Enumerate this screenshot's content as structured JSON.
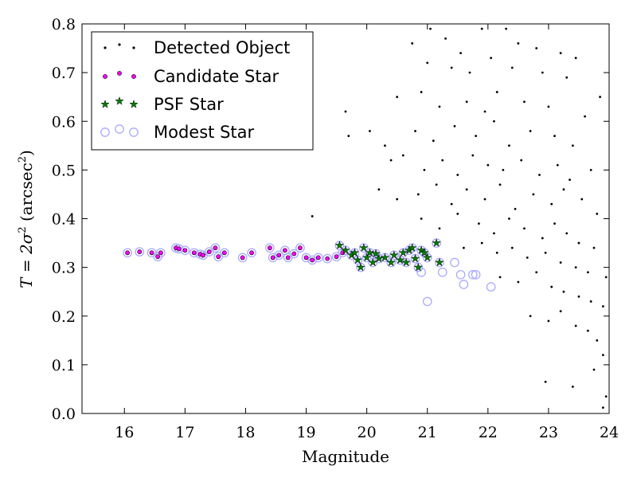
{
  "chart_data": {
    "type": "scatter",
    "xlabel": "Magnitude",
    "ylabel_prefix": "T = 2σ",
    "ylabel_sup1": "2",
    "ylabel_mid": " (arcsec",
    "ylabel_sup2": "2",
    "ylabel_suffix": ")",
    "xlim": [
      15.3,
      24
    ],
    "ylim": [
      0.0,
      0.8
    ],
    "xticks": [
      16,
      17,
      18,
      19,
      20,
      21,
      22,
      23,
      24
    ],
    "yticks": [
      0.0,
      0.1,
      0.2,
      0.3,
      0.4,
      0.5,
      0.6,
      0.7,
      0.8
    ],
    "grid": false,
    "legend_position": "top-left",
    "series": [
      {
        "name": "Detected Object",
        "marker": "dot",
        "color": "#000000",
        "points": [
          [
            21.05,
            0.79
          ],
          [
            21.3,
            0.77
          ],
          [
            21.55,
            0.74
          ],
          [
            21.9,
            0.79
          ],
          [
            22.3,
            0.79
          ],
          [
            22.5,
            0.76
          ],
          [
            22.8,
            0.75
          ],
          [
            23.2,
            0.74
          ],
          [
            23.45,
            0.73
          ],
          [
            20.75,
            0.76
          ],
          [
            21.0,
            0.72
          ],
          [
            21.4,
            0.71
          ],
          [
            21.7,
            0.7
          ],
          [
            22.05,
            0.73
          ],
          [
            22.4,
            0.71
          ],
          [
            22.9,
            0.7
          ],
          [
            23.3,
            0.69
          ],
          [
            20.5,
            0.65
          ],
          [
            20.9,
            0.66
          ],
          [
            21.2,
            0.63
          ],
          [
            21.65,
            0.64
          ],
          [
            21.95,
            0.62
          ],
          [
            22.15,
            0.66
          ],
          [
            22.6,
            0.64
          ],
          [
            23.0,
            0.63
          ],
          [
            23.6,
            0.61
          ],
          [
            23.85,
            0.65
          ],
          [
            19.65,
            0.62
          ],
          [
            19.7,
            0.57
          ],
          [
            20.05,
            0.58
          ],
          [
            20.3,
            0.55
          ],
          [
            20.8,
            0.58
          ],
          [
            21.1,
            0.56
          ],
          [
            21.45,
            0.59
          ],
          [
            21.8,
            0.57
          ],
          [
            22.1,
            0.6
          ],
          [
            22.35,
            0.55
          ],
          [
            22.7,
            0.58
          ],
          [
            23.1,
            0.57
          ],
          [
            23.4,
            0.55
          ],
          [
            20.4,
            0.52
          ],
          [
            20.6,
            0.53
          ],
          [
            20.95,
            0.5
          ],
          [
            21.25,
            0.52
          ],
          [
            21.5,
            0.49
          ],
          [
            21.75,
            0.53
          ],
          [
            22.0,
            0.51
          ],
          [
            22.25,
            0.5
          ],
          [
            22.55,
            0.52
          ],
          [
            22.85,
            0.49
          ],
          [
            23.15,
            0.51
          ],
          [
            23.35,
            0.48
          ],
          [
            23.7,
            0.5
          ],
          [
            20.2,
            0.46
          ],
          [
            20.5,
            0.44
          ],
          [
            20.85,
            0.45
          ],
          [
            21.15,
            0.47
          ],
          [
            21.4,
            0.43
          ],
          [
            21.65,
            0.46
          ],
          [
            21.95,
            0.44
          ],
          [
            22.2,
            0.47
          ],
          [
            22.45,
            0.42
          ],
          [
            22.75,
            0.45
          ],
          [
            23.05,
            0.43
          ],
          [
            23.25,
            0.46
          ],
          [
            23.55,
            0.44
          ],
          [
            23.8,
            0.41
          ],
          [
            19.1,
            0.405
          ],
          [
            20.9,
            0.4
          ],
          [
            21.2,
            0.38
          ],
          [
            21.5,
            0.41
          ],
          [
            21.85,
            0.39
          ],
          [
            22.1,
            0.37
          ],
          [
            22.35,
            0.4
          ],
          [
            22.6,
            0.38
          ],
          [
            22.9,
            0.36
          ],
          [
            23.1,
            0.39
          ],
          [
            23.3,
            0.37
          ],
          [
            23.5,
            0.35
          ],
          [
            23.75,
            0.34
          ],
          [
            21.6,
            0.34
          ],
          [
            21.9,
            0.35
          ],
          [
            22.15,
            0.33
          ],
          [
            22.4,
            0.34
          ],
          [
            22.65,
            0.32
          ],
          [
            22.95,
            0.33
          ],
          [
            23.2,
            0.31
          ],
          [
            23.45,
            0.3
          ],
          [
            23.65,
            0.29
          ],
          [
            23.95,
            0.28
          ],
          [
            22.2,
            0.28
          ],
          [
            22.5,
            0.27
          ],
          [
            22.8,
            0.29
          ],
          [
            23.05,
            0.26
          ],
          [
            23.25,
            0.25
          ],
          [
            23.5,
            0.24
          ],
          [
            23.7,
            0.23
          ],
          [
            23.9,
            0.22
          ],
          [
            22.7,
            0.2
          ],
          [
            23.0,
            0.19
          ],
          [
            23.2,
            0.21
          ],
          [
            23.45,
            0.18
          ],
          [
            23.65,
            0.17
          ],
          [
            23.8,
            0.15
          ],
          [
            23.9,
            0.12
          ],
          [
            22.95,
            0.065
          ],
          [
            23.4,
            0.055
          ],
          [
            23.75,
            0.09
          ],
          [
            23.9,
            0.012
          ],
          [
            23.95,
            0.035
          ]
        ]
      },
      {
        "name": "Candidate Star",
        "marker": "circle",
        "color": "#ff00ff",
        "points": [
          [
            16.05,
            0.33
          ],
          [
            16.25,
            0.332
          ],
          [
            16.45,
            0.33
          ],
          [
            16.55,
            0.322
          ],
          [
            16.6,
            0.33
          ],
          [
            16.85,
            0.34
          ],
          [
            16.9,
            0.338
          ],
          [
            17.0,
            0.335
          ],
          [
            17.15,
            0.33
          ],
          [
            17.25,
            0.327
          ],
          [
            17.3,
            0.325
          ],
          [
            17.4,
            0.332
          ],
          [
            17.5,
            0.34
          ],
          [
            17.55,
            0.322
          ],
          [
            17.65,
            0.33
          ],
          [
            17.95,
            0.32
          ],
          [
            18.1,
            0.33
          ],
          [
            18.4,
            0.34
          ],
          [
            18.45,
            0.32
          ],
          [
            18.55,
            0.325
          ],
          [
            18.65,
            0.335
          ],
          [
            18.7,
            0.32
          ],
          [
            18.8,
            0.328
          ],
          [
            18.9,
            0.34
          ],
          [
            19.0,
            0.32
          ],
          [
            19.1,
            0.315
          ],
          [
            19.2,
            0.32
          ],
          [
            19.35,
            0.318
          ],
          [
            19.5,
            0.322
          ],
          [
            19.6,
            0.33
          ]
        ]
      },
      {
        "name": "PSF Star",
        "marker": "star",
        "color": "#007f00",
        "points": [
          [
            19.55,
            0.345
          ],
          [
            19.65,
            0.335
          ],
          [
            19.75,
            0.325
          ],
          [
            19.8,
            0.33
          ],
          [
            19.85,
            0.315
          ],
          [
            19.9,
            0.3
          ],
          [
            19.95,
            0.34
          ],
          [
            20.0,
            0.32
          ],
          [
            20.05,
            0.33
          ],
          [
            20.1,
            0.31
          ],
          [
            20.15,
            0.328
          ],
          [
            20.2,
            0.318
          ],
          [
            20.3,
            0.32
          ],
          [
            20.4,
            0.31
          ],
          [
            20.45,
            0.325
          ],
          [
            20.55,
            0.315
          ],
          [
            20.6,
            0.33
          ],
          [
            20.65,
            0.31
          ],
          [
            20.7,
            0.335
          ],
          [
            20.75,
            0.34
          ],
          [
            20.8,
            0.318
          ],
          [
            20.85,
            0.3
          ],
          [
            20.9,
            0.335
          ],
          [
            20.95,
            0.33
          ],
          [
            21.0,
            0.32
          ],
          [
            21.15,
            0.35
          ],
          [
            21.2,
            0.31
          ]
        ]
      },
      {
        "name": "Modest Star",
        "marker": "open-circle",
        "color": "#aaaaff",
        "points": [
          [
            16.05,
            0.33
          ],
          [
            16.25,
            0.332
          ],
          [
            16.45,
            0.33
          ],
          [
            16.55,
            0.322
          ],
          [
            16.6,
            0.33
          ],
          [
            16.85,
            0.34
          ],
          [
            16.9,
            0.338
          ],
          [
            17.0,
            0.335
          ],
          [
            17.15,
            0.33
          ],
          [
            17.25,
            0.327
          ],
          [
            17.3,
            0.325
          ],
          [
            17.4,
            0.332
          ],
          [
            17.5,
            0.34
          ],
          [
            17.55,
            0.322
          ],
          [
            17.65,
            0.33
          ],
          [
            17.95,
            0.32
          ],
          [
            18.1,
            0.33
          ],
          [
            18.4,
            0.34
          ],
          [
            18.45,
            0.32
          ],
          [
            18.55,
            0.325
          ],
          [
            18.65,
            0.335
          ],
          [
            18.7,
            0.32
          ],
          [
            18.8,
            0.328
          ],
          [
            18.9,
            0.34
          ],
          [
            19.0,
            0.32
          ],
          [
            19.1,
            0.315
          ],
          [
            19.2,
            0.32
          ],
          [
            19.35,
            0.318
          ],
          [
            19.5,
            0.322
          ],
          [
            19.6,
            0.33
          ],
          [
            19.55,
            0.345
          ],
          [
            19.65,
            0.335
          ],
          [
            19.75,
            0.325
          ],
          [
            19.8,
            0.33
          ],
          [
            19.85,
            0.315
          ],
          [
            19.9,
            0.3
          ],
          [
            19.95,
            0.34
          ],
          [
            20.0,
            0.32
          ],
          [
            20.05,
            0.33
          ],
          [
            20.1,
            0.31
          ],
          [
            20.15,
            0.328
          ],
          [
            20.2,
            0.318
          ],
          [
            20.3,
            0.32
          ],
          [
            20.4,
            0.31
          ],
          [
            20.45,
            0.325
          ],
          [
            20.55,
            0.315
          ],
          [
            20.6,
            0.33
          ],
          [
            20.65,
            0.31
          ],
          [
            20.7,
            0.335
          ],
          [
            20.75,
            0.34
          ],
          [
            20.8,
            0.318
          ],
          [
            20.85,
            0.3
          ],
          [
            20.9,
            0.335
          ],
          [
            20.95,
            0.33
          ],
          [
            21.0,
            0.32
          ],
          [
            21.15,
            0.35
          ],
          [
            21.2,
            0.31
          ],
          [
            20.9,
            0.29
          ],
          [
            21.0,
            0.23
          ],
          [
            21.25,
            0.29
          ],
          [
            21.45,
            0.31
          ],
          [
            21.55,
            0.285
          ],
          [
            21.6,
            0.265
          ],
          [
            21.75,
            0.285
          ],
          [
            21.8,
            0.285
          ],
          [
            22.05,
            0.26
          ]
        ]
      }
    ]
  }
}
